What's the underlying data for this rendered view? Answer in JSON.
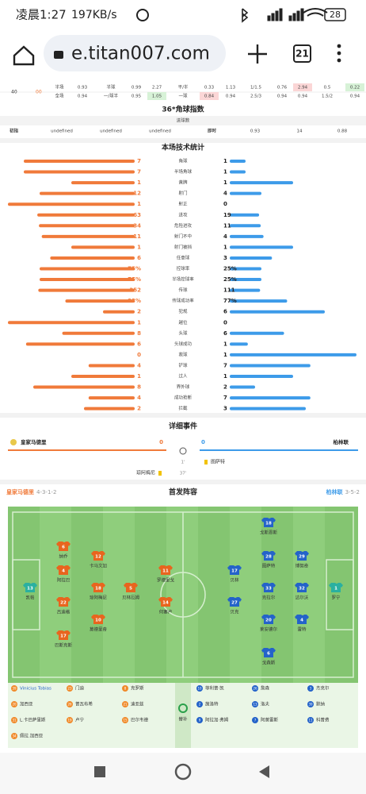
{
  "status_bar": {
    "time": "凌晨1:27",
    "speed": "197KB/s",
    "battery": "28"
  },
  "browser": {
    "url": "e.titan007.com",
    "tabs": "21"
  },
  "odds": {
    "left": [
      "40",
      "00"
    ],
    "rows": [
      [
        "半场",
        "0.93",
        "半球",
        "0.99",
        "2.27",
        "平/半",
        "0.33",
        "1.13",
        "1/1.5",
        "0.76",
        "2.94",
        "0.5",
        "0.22"
      ],
      [
        "全场",
        "0.94",
        "一/球半",
        "0.95",
        "1.05",
        "一球",
        "0.84",
        "0.94",
        "2.5/3",
        "0.94",
        "0.94",
        "1.5/2",
        "0.94"
      ]
    ]
  },
  "corner": {
    "title": "36*角球指数",
    "header": "进球数",
    "row": [
      "初指",
      "undefined",
      "undefined",
      "undefined",
      "即时",
      "0.93",
      "14",
      "0.88"
    ]
  },
  "stats": {
    "title": "本场技术统计",
    "items": [
      {
        "name": "角球",
        "home": 7,
        "away": 1
      },
      {
        "name": "半场角球",
        "home": 7,
        "away": 1
      },
      {
        "name": "黄牌",
        "home": 1,
        "away": 1
      },
      {
        "name": "射门",
        "home": 12,
        "away": 4
      },
      {
        "name": "射正",
        "home": 1,
        "away": 0
      },
      {
        "name": "进攻",
        "home": 63,
        "away": 19
      },
      {
        "name": "危险进攻",
        "home": 34,
        "away": 11
      },
      {
        "name": "射门不中",
        "home": 11,
        "away": 4
      },
      {
        "name": "射门被挡",
        "home": 1,
        "away": 1
      },
      {
        "name": "任意球",
        "home": 6,
        "away": 3
      },
      {
        "name": "控球率",
        "home": 75,
        "away": 25,
        "home_label": "75%",
        "away_label": "25%"
      },
      {
        "name": "半场控球率",
        "home": 75,
        "away": 25,
        "home_label": "75%",
        "away_label": "25%"
      },
      {
        "name": "传球",
        "home": 352,
        "away": 111
      },
      {
        "name": "传球成功率",
        "home": 93,
        "away": 77,
        "home_label": "93%",
        "away_label": "77%"
      },
      {
        "name": "犯规",
        "home": 2,
        "away": 6
      },
      {
        "name": "越位",
        "home": 1,
        "away": 0
      },
      {
        "name": "头球",
        "home": 8,
        "away": 6
      },
      {
        "name": "头球成功",
        "home": 6,
        "away": 1
      },
      {
        "name": "救球",
        "home": 0,
        "away": 1
      },
      {
        "name": "铲球",
        "home": 4,
        "away": 7
      },
      {
        "name": "过人",
        "home": 1,
        "away": 1
      },
      {
        "name": "界外球",
        "home": 8,
        "away": 2
      },
      {
        "name": "成功抢断",
        "home": 4,
        "away": 7
      },
      {
        "name": "拦截",
        "home": 2,
        "away": 3
      }
    ]
  },
  "events": {
    "title": "详细事件",
    "home": "皇家马德里",
    "away": "柏林联",
    "home_score": "0",
    "away_score": "0",
    "list": [
      {
        "minute": "1'",
        "player": "图萨特",
        "side": "away"
      },
      {
        "minute": "37'",
        "player": "琼阿梅尼",
        "side": "home"
      }
    ]
  },
  "lineup": {
    "title": "首发阵容",
    "home": "皇家马德里",
    "home_formation": "4-3-1-2",
    "away": "柏林联",
    "away_formation": "3-5-2",
    "home_players": [
      {
        "no": "13",
        "name": "凯帕"
      },
      {
        "no": "6",
        "name": "纳乔"
      },
      {
        "no": "4",
        "name": "阿拉巴"
      },
      {
        "no": "22",
        "name": "吕迪格"
      },
      {
        "no": "17",
        "name": "巴斯克斯"
      },
      {
        "no": "12",
        "name": "卡马文加"
      },
      {
        "no": "18",
        "name": "琼阿梅尼"
      },
      {
        "no": "10",
        "name": "莫德里奇"
      },
      {
        "no": "5",
        "name": "贝林厄姆"
      },
      {
        "no": "11",
        "name": "罗德里戈"
      },
      {
        "no": "14",
        "name": "何塞卢"
      }
    ],
    "away_players": [
      {
        "no": "1",
        "name": "罗宁"
      },
      {
        "no": "18",
        "name": "戈斯恩斯"
      },
      {
        "no": "28",
        "name": "图萨特"
      },
      {
        "no": "33",
        "name": "克拉尔"
      },
      {
        "no": "20",
        "name": "莱安德尔"
      },
      {
        "no": "6",
        "name": "戈森斯"
      },
      {
        "no": "29",
        "name": "博努奇"
      },
      {
        "no": "32",
        "name": "达尔沃"
      },
      {
        "no": "4",
        "name": "雷特"
      },
      {
        "no": "17",
        "name": "贝林"
      },
      {
        "no": "27",
        "name": "贝克"
      }
    ],
    "subs_label": "替补",
    "home_subs": [
      {
        "no": "39",
        "name": "Vinicius Tobias"
      },
      {
        "no": "20",
        "name": "加西亚"
      },
      {
        "no": "31",
        "name": "L.卡巴萨里斯"
      },
      {
        "no": "34",
        "name": "佩拉.加西亚"
      },
      {
        "no": "23",
        "name": "门迪"
      },
      {
        "no": "26",
        "name": "普瓦布希"
      },
      {
        "no": "19",
        "name": "卢宁"
      },
      {
        "no": "8",
        "name": "克罗斯"
      },
      {
        "no": "21",
        "name": "迪亚兹"
      },
      {
        "no": "15",
        "name": "巴尔韦德"
      }
    ],
    "away_subs": [
      {
        "no": "10",
        "name": "菲利普·凯"
      },
      {
        "no": "2",
        "name": "施洛特"
      },
      {
        "no": "9",
        "name": "阿拉加·弗姆"
      },
      {
        "no": "26",
        "name": "詹森"
      },
      {
        "no": "13",
        "name": "洛夫"
      },
      {
        "no": "7",
        "name": "阿莫雷斯"
      },
      {
        "no": "3",
        "name": "杰克尔"
      },
      {
        "no": "39",
        "name": "默纳"
      },
      {
        "no": "11",
        "name": "科普费"
      }
    ]
  }
}
